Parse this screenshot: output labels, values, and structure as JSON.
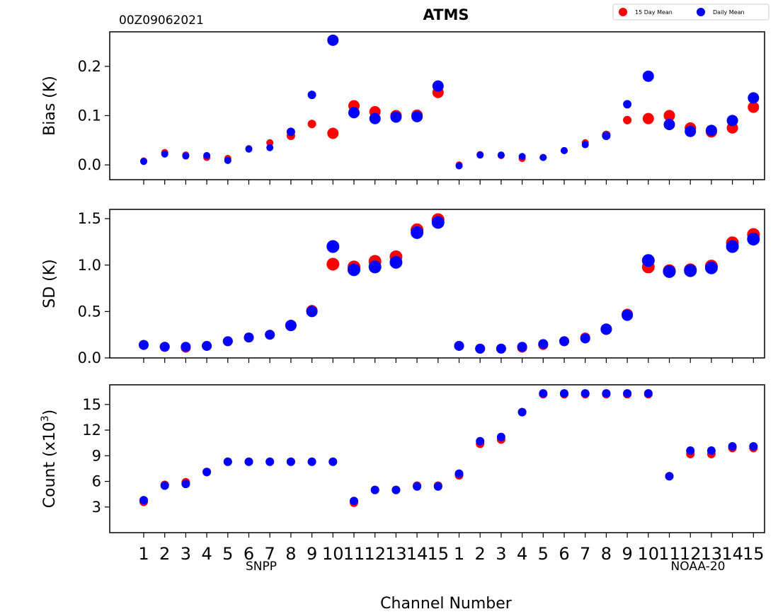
{
  "title": "ATMS",
  "date_stamp": "00Z09062021",
  "xlabel": "Channel Number",
  "satellites": [
    "SNPP",
    "NOAA-20"
  ],
  "legend": [
    {
      "label": "15 Day Mean",
      "color": "#ff0000"
    },
    {
      "label": "Daily Mean",
      "color": "#0000ff"
    }
  ],
  "colors": {
    "fifteen_day": "#ff0000",
    "daily": "#0000ff"
  },
  "chart_data": [
    {
      "type": "scatter",
      "ylabel": "Bias (K)",
      "ylim": [
        -0.03,
        0.27
      ],
      "yticks": [
        0.0,
        0.1,
        0.2
      ],
      "ytick_labels": [
        "0.0",
        "0.1",
        "0.2"
      ],
      "categories": [
        "1",
        "2",
        "3",
        "4",
        "5",
        "6",
        "7",
        "8",
        "9",
        "10",
        "11",
        "12",
        "13",
        "14",
        "15",
        "1",
        "2",
        "3",
        "4",
        "5",
        "6",
        "7",
        "8",
        "9",
        "10",
        "11",
        "12",
        "13",
        "14",
        "15"
      ],
      "series": [
        {
          "name": "15 Day Mean",
          "values": [
            0.008,
            0.025,
            0.02,
            0.015,
            0.013,
            0.033,
            0.045,
            0.059,
            0.083,
            0.064,
            0.12,
            0.108,
            0.1,
            0.101,
            0.147,
            0.0,
            0.021,
            0.019,
            0.013,
            0.015,
            0.029,
            0.045,
            0.061,
            0.091,
            0.094,
            0.1,
            0.075,
            0.067,
            0.075,
            0.117
          ]
        },
        {
          "name": "Daily Mean",
          "values": [
            0.007,
            0.022,
            0.018,
            0.019,
            0.009,
            0.032,
            0.035,
            0.067,
            0.142,
            0.253,
            0.106,
            0.094,
            0.097,
            0.098,
            0.16,
            -0.002,
            0.02,
            0.02,
            0.017,
            0.015,
            0.029,
            0.041,
            0.059,
            0.123,
            0.18,
            0.082,
            0.068,
            0.07,
            0.09,
            0.136
          ]
        }
      ]
    },
    {
      "type": "scatter",
      "ylabel": "SD (K)",
      "ylim": [
        0.0,
        1.6
      ],
      "yticks": [
        0.0,
        0.5,
        1.0,
        1.5
      ],
      "ytick_labels": [
        "0.0",
        "0.5",
        "1.0",
        "1.5"
      ],
      "categories": [
        "1",
        "2",
        "3",
        "4",
        "5",
        "6",
        "7",
        "8",
        "9",
        "10",
        "11",
        "12",
        "13",
        "14",
        "15",
        "1",
        "2",
        "3",
        "4",
        "5",
        "6",
        "7",
        "8",
        "9",
        "10",
        "11",
        "12",
        "13",
        "14",
        "15"
      ],
      "series": [
        {
          "name": "15 Day Mean",
          "values": [
            0.14,
            0.12,
            0.11,
            0.13,
            0.18,
            0.22,
            0.25,
            0.35,
            0.51,
            1.01,
            0.98,
            1.04,
            1.09,
            1.38,
            1.49,
            0.13,
            0.1,
            0.1,
            0.11,
            0.14,
            0.18,
            0.22,
            0.31,
            0.47,
            0.98,
            0.94,
            0.95,
            0.99,
            1.24,
            1.33
          ]
        },
        {
          "name": "Daily Mean",
          "values": [
            0.14,
            0.12,
            0.12,
            0.13,
            0.18,
            0.22,
            0.25,
            0.35,
            0.5,
            1.2,
            0.95,
            0.98,
            1.03,
            1.35,
            1.46,
            0.13,
            0.1,
            0.1,
            0.12,
            0.15,
            0.18,
            0.21,
            0.31,
            0.46,
            1.05,
            0.93,
            0.94,
            0.97,
            1.2,
            1.28
          ]
        }
      ]
    },
    {
      "type": "scatter",
      "ylabel": "Count (x10³)",
      "ylabel_main": "Count (x10",
      "ylabel_sup": "3",
      "ylabel_tail": ")",
      "ylim": [
        0.0,
        17.3
      ],
      "yticks": [
        3,
        6,
        9,
        12,
        15
      ],
      "ytick_labels": [
        "3",
        "6",
        "9",
        "12",
        "15"
      ],
      "categories": [
        "1",
        "2",
        "3",
        "4",
        "5",
        "6",
        "7",
        "8",
        "9",
        "10",
        "11",
        "12",
        "13",
        "14",
        "15",
        "1",
        "2",
        "3",
        "4",
        "5",
        "6",
        "7",
        "8",
        "9",
        "10",
        "11",
        "12",
        "13",
        "14",
        "15"
      ],
      "series": [
        {
          "name": "15 Day Mean",
          "values": [
            3.6,
            5.6,
            5.9,
            7.1,
            8.3,
            8.3,
            8.3,
            8.3,
            8.3,
            8.3,
            3.5,
            5.0,
            5.0,
            5.5,
            5.5,
            6.7,
            10.4,
            10.9,
            14.1,
            16.2,
            16.2,
            16.2,
            16.2,
            16.2,
            16.2,
            6.6,
            9.2,
            9.2,
            9.9,
            9.9
          ]
        },
        {
          "name": "Daily Mean",
          "values": [
            3.8,
            5.5,
            5.7,
            7.1,
            8.3,
            8.3,
            8.3,
            8.3,
            8.3,
            8.3,
            3.7,
            5.0,
            5.0,
            5.4,
            5.4,
            6.9,
            10.7,
            11.2,
            14.1,
            16.3,
            16.3,
            16.3,
            16.3,
            16.3,
            16.3,
            6.6,
            9.6,
            9.6,
            10.1,
            10.1
          ]
        }
      ]
    }
  ]
}
